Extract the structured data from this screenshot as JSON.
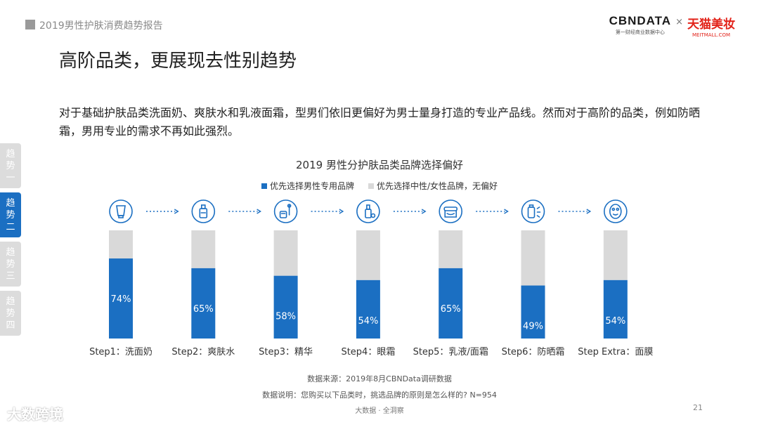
{
  "header": {
    "report_title": "2019男性护肤消费趋势报告",
    "brand_cbn": "CBNDATA",
    "brand_cbn_sub": "第一财经商业数据中心",
    "brand_x": "×",
    "brand_tmall": "天猫美妆",
    "brand_tmall_sub": "MEITMALL.COM"
  },
  "page_title": "高阶品类，更展现去性别趋势",
  "intro": "对于基础护肤品类洗面奶、爽肤水和乳液面霜，型男们依旧更偏好为男士量身打造的专业产品线。然而对于高阶的品类，例如防晒霜，男用专业的需求不再如此强烈。",
  "side_nav": [
    {
      "label": [
        "趋",
        "势",
        "一"
      ],
      "active": false
    },
    {
      "label": [
        "趋",
        "势",
        "二"
      ],
      "active": true
    },
    {
      "label": [
        "趋",
        "势",
        "三"
      ],
      "active": false
    },
    {
      "label": [
        "趋",
        "势",
        "四"
      ],
      "active": false
    }
  ],
  "colors": {
    "primary": "#1b6fc2",
    "secondary": "#d9d9d9",
    "icon": "#1b6fc2"
  },
  "chart_data": {
    "type": "bar",
    "stacked": true,
    "title": "2019 男性分护肤品类品牌选择偏好",
    "categories": [
      "Step1：洗面奶",
      "Step2：爽肤水",
      "Step3：精华",
      "Step4：眼霜",
      "Step5：乳液/面霜",
      "Step6：防晒霜",
      "Step Extra：面膜"
    ],
    "icons": [
      "cleanser-tube-icon",
      "toner-bottle-icon",
      "serum-dropper-icon",
      "eye-cream-icon",
      "cream-jar-icon",
      "sunscreen-icon",
      "face-mask-icon"
    ],
    "series": [
      {
        "name": "优先选择男性专用品牌",
        "values": [
          74,
          65,
          58,
          54,
          65,
          49,
          54
        ]
      },
      {
        "name": "优先选择中性/女性品牌，无偏好",
        "values": [
          26,
          35,
          42,
          46,
          35,
          51,
          46
        ]
      }
    ],
    "data_labels": [
      "74%",
      "65%",
      "58%",
      "54%",
      "65%",
      "49%",
      "54%"
    ],
    "ylim": [
      0,
      100
    ],
    "legend_position": "top-center",
    "grid": false
  },
  "footer": {
    "source": "数据来源：2019年8月CBNData调研数据",
    "note": "数据说明：您购买以下品类时，挑选品牌的原则是怎么样的? N=954",
    "tagline": "大数据 · 全洞察",
    "page_number": "21",
    "watermark_logo": "大数跨境"
  }
}
